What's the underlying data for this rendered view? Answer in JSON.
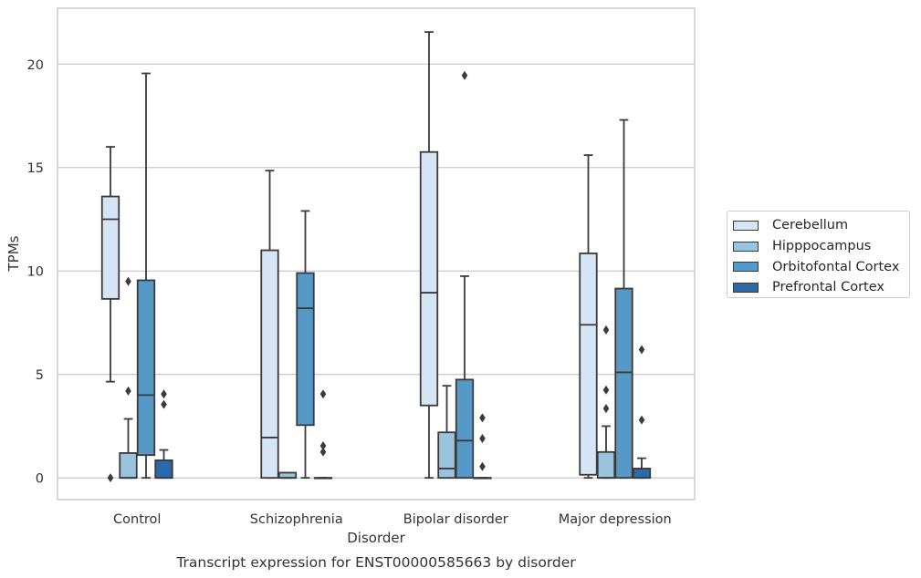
{
  "chart_data": {
    "type": "box",
    "title": "",
    "caption": "Transcript expression for ENST00000585663 by disorder",
    "xlabel": "Disorder",
    "ylabel": "TPMs",
    "ylim": [
      -1.05,
      22.7
    ],
    "yticks": [
      0,
      5,
      10,
      15,
      20
    ],
    "grid": "horizontal",
    "legend_placement": "outside-right",
    "categories": [
      "Control",
      "Schizophrenia",
      "Bipolar disorder",
      "Major depression"
    ],
    "series": [
      {
        "name": "Cerebellum",
        "color": "#d6e5f3",
        "boxes": [
          {
            "min": 4.65,
            "q1": 8.65,
            "median": 12.5,
            "q3": 13.6,
            "max": 16.0,
            "outliers": [
              0.0
            ]
          },
          {
            "min": 0.0,
            "q1": 0.0,
            "median": 1.95,
            "q3": 11.0,
            "max": 14.85,
            "outliers": []
          },
          {
            "min": 0.0,
            "q1": 3.5,
            "median": 8.95,
            "q3": 15.75,
            "max": 21.55,
            "outliers": []
          },
          {
            "min": 0.0,
            "q1": 0.15,
            "median": 7.4,
            "q3": 10.85,
            "max": 15.6,
            "outliers": []
          }
        ]
      },
      {
        "name": "Hipppocampus",
        "color": "#9ac3de",
        "boxes": [
          {
            "min": 0.0,
            "q1": 0.0,
            "median": 0.0,
            "q3": 1.2,
            "max": 2.85,
            "outliers": [
              9.5,
              4.2
            ]
          },
          {
            "min": 0.0,
            "q1": 0.0,
            "median": 0.0,
            "q3": 0.25,
            "max": 0.25,
            "outliers": []
          },
          {
            "min": 0.0,
            "q1": 0.0,
            "median": 0.45,
            "q3": 2.2,
            "max": 4.45,
            "outliers": []
          },
          {
            "min": 0.0,
            "q1": 0.0,
            "median": 0.0,
            "q3": 1.25,
            "max": 2.5,
            "outliers": [
              7.15,
              4.25,
              3.35
            ]
          }
        ]
      },
      {
        "name": "Orbitofontal Cortex",
        "color": "#5799c6",
        "boxes": [
          {
            "min": 0.0,
            "q1": 1.1,
            "median": 4.0,
            "q3": 9.55,
            "max": 19.55,
            "outliers": []
          },
          {
            "min": 0.0,
            "q1": 2.55,
            "median": 8.2,
            "q3": 9.9,
            "max": 12.9,
            "outliers": []
          },
          {
            "min": 0.0,
            "q1": 0.0,
            "median": 1.8,
            "q3": 4.75,
            "max": 9.75,
            "outliers": [
              19.45
            ]
          },
          {
            "min": 0.0,
            "q1": 0.0,
            "median": 5.1,
            "q3": 9.15,
            "max": 17.3,
            "outliers": []
          }
        ]
      },
      {
        "name": "Prefrontal Cortex",
        "color": "#2a6aaa",
        "boxes": [
          {
            "min": 0.0,
            "q1": 0.0,
            "median": 0.0,
            "q3": 0.85,
            "max": 1.35,
            "outliers": [
              4.05,
              3.55
            ]
          },
          {
            "min": 0.0,
            "q1": 0.0,
            "median": 0.0,
            "q3": 0.0,
            "max": 0.0,
            "outliers": [
              4.05,
              1.55,
              1.25
            ]
          },
          {
            "min": 0.0,
            "q1": 0.0,
            "median": 0.0,
            "q3": 0.0,
            "max": 0.0,
            "outliers": [
              2.9,
              1.9,
              0.55
            ]
          },
          {
            "min": 0.0,
            "q1": 0.0,
            "median": 0.0,
            "q3": 0.45,
            "max": 0.95,
            "outliers": [
              6.2,
              2.8
            ]
          }
        ]
      }
    ]
  }
}
